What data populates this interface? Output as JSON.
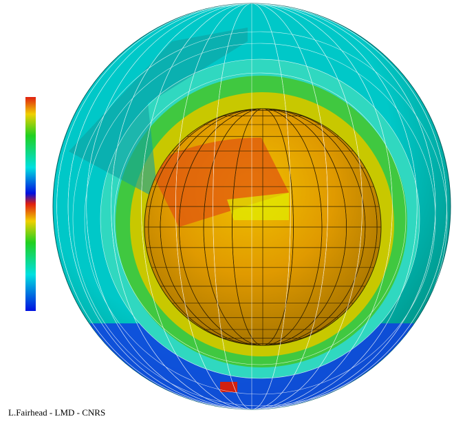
{
  "credit": "L.Fairhead - LMD - CNRS"
}
